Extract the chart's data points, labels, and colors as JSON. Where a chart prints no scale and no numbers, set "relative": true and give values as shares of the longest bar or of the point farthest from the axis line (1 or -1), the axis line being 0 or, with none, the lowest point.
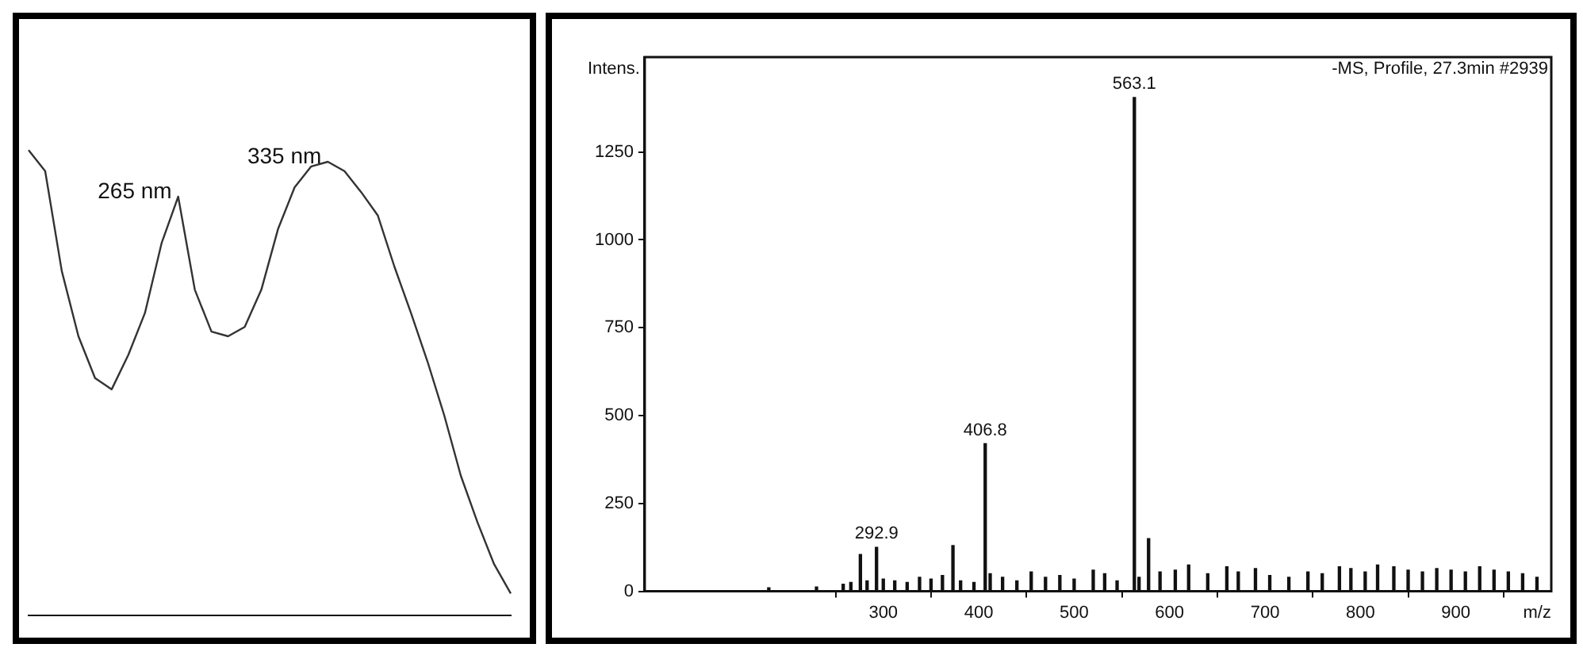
{
  "chart_data": [
    {
      "type": "line",
      "relative": true,
      "color": "#333333",
      "categories": [
        null,
        null,
        null,
        null,
        null,
        null,
        null,
        null,
        null,
        null,
        null,
        null,
        null,
        null,
        null,
        null,
        null,
        null,
        null,
        null,
        null,
        null,
        null,
        null,
        null,
        null,
        null,
        null,
        null,
        null
      ],
      "values": [
        1,
        0.955,
        0.74,
        0.6,
        0.51,
        0.486,
        0.56,
        0.65,
        0.8,
        0.9,
        0.7,
        0.61,
        0.6,
        0.62,
        0.7,
        0.83,
        0.92,
        0.965,
        0.975,
        0.955,
        0.91,
        0.86,
        0.75,
        0.65,
        0.545,
        0.43,
        0.3,
        0.2,
        0.11,
        0.047
      ],
      "annotations": [
        "265 nm",
        "335 nm"
      ]
    },
    {
      "type": "bar",
      "color": "#111111",
      "xlabel": "m/z",
      "ylabel": "Intens.",
      "x": [
        180,
        230,
        258,
        266,
        276,
        283,
        292.9,
        300,
        312,
        325,
        338,
        350,
        362,
        373,
        381,
        395,
        406.8,
        412,
        425,
        440,
        455,
        470,
        485,
        500,
        520,
        532,
        545,
        563.1,
        568,
        578,
        590,
        606,
        620,
        640,
        660,
        672,
        690,
        705,
        725,
        745,
        760,
        778,
        790,
        805,
        818,
        835,
        850,
        865,
        880,
        895,
        910,
        925,
        940,
        955,
        970,
        985
      ],
      "values": [
        10,
        12,
        20,
        25,
        105,
        30,
        125,
        35,
        30,
        25,
        40,
        35,
        45,
        130,
        30,
        25,
        420,
        50,
        40,
        30,
        55,
        40,
        45,
        35,
        60,
        50,
        30,
        1405,
        40,
        150,
        55,
        60,
        75,
        50,
        70,
        55,
        65,
        45,
        40,
        55,
        50,
        70,
        65,
        55,
        75,
        70,
        60,
        55,
        65,
        60,
        55,
        70,
        60,
        55,
        50,
        40
      ],
      "xlim": [
        50,
        1000
      ],
      "xticks": [
        300,
        400,
        500,
        600,
        700,
        800,
        900
      ],
      "ylim": [
        0,
        1520
      ],
      "yticks": [
        0,
        250,
        500,
        750,
        1000,
        1250
      ],
      "annotations": [
        {
          "text": "292.9",
          "x": 292.9,
          "y": 125
        },
        {
          "text": "406.8",
          "x": 406.8,
          "y": 420
        },
        {
          "text": "563.1",
          "x": 563.1,
          "y": 1405
        },
        "-MS, Profile, 27.3min #2939"
      ]
    }
  ]
}
